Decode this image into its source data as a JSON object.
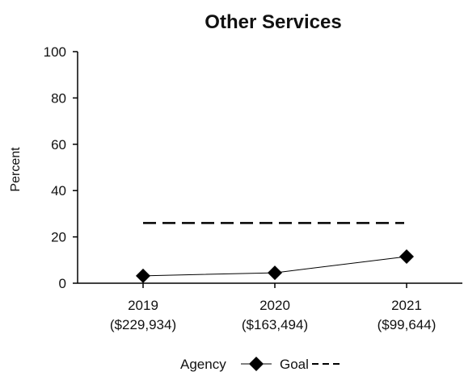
{
  "chart_data": {
    "type": "line",
    "title": "Other Services",
    "xlabel": "",
    "ylabel": "Percent",
    "ylim": [
      0,
      100
    ],
    "yticks": [
      "0",
      "20",
      "40",
      "60",
      "80",
      "100"
    ],
    "categories": [
      "2019",
      "2020",
      "2021"
    ],
    "category_sublabels": [
      "($229,934)",
      "($163,494)",
      "($99,644)"
    ],
    "series": [
      {
        "name": "Agency",
        "values": [
          3.2,
          4.5,
          11.5
        ],
        "color": "#000000",
        "marker": "diamond"
      },
      {
        "name": "Goal",
        "values": [
          26,
          26,
          26
        ],
        "color": "#000000",
        "style": "dashed"
      }
    ],
    "legend": {
      "position": "bottom-center",
      "agency_label": "Agency",
      "goal_label": "Goal"
    },
    "grid": false
  }
}
